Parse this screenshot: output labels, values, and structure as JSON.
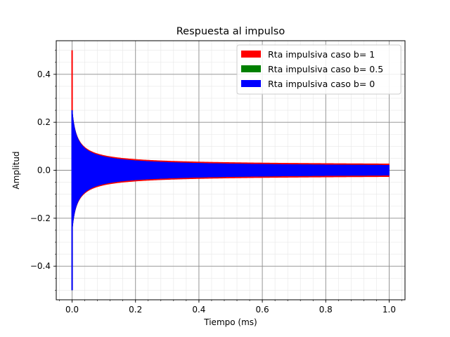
{
  "chart_data": {
    "type": "line",
    "title": "Respuesta al impulso",
    "xlabel": "Tiempo (ms)",
    "ylabel": "Amplitud",
    "xlim": [
      -0.05,
      1.05
    ],
    "ylim": [
      -0.54,
      0.54
    ],
    "xticks": [
      0.0,
      0.2,
      0.4,
      0.6,
      0.8,
      1.0
    ],
    "xtick_labels": [
      "0.0",
      "0.2",
      "0.4",
      "0.6",
      "0.8",
      "1.0"
    ],
    "yticks": [
      -0.4,
      -0.2,
      0.0,
      0.2,
      0.4
    ],
    "ytick_labels": [
      "−0.4",
      "−0.2",
      "0.0",
      "0.2",
      "0.4"
    ],
    "grid": "major and minor",
    "legend_position": "top-right",
    "series": [
      {
        "name": "Rta impulsiva caso b= 1",
        "color": "#ff0000",
        "peak_max": 0.5,
        "peak_min": -0.5,
        "envelope_end": 0.015,
        "x": [
          0.0,
          1.0
        ]
      },
      {
        "name": "Rta impulsiva caso b= 0.5",
        "color": "#008000",
        "peak_max": 0.25,
        "peak_min": -0.5,
        "envelope_end": 0.012,
        "x": [
          0.0,
          1.0
        ]
      },
      {
        "name": "Rta impulsiva caso b= 0",
        "color": "#0000ff",
        "peak_max": 0.25,
        "peak_min": -0.5,
        "envelope_end": 0.012,
        "x": [
          0.0,
          1.0
        ]
      }
    ]
  }
}
